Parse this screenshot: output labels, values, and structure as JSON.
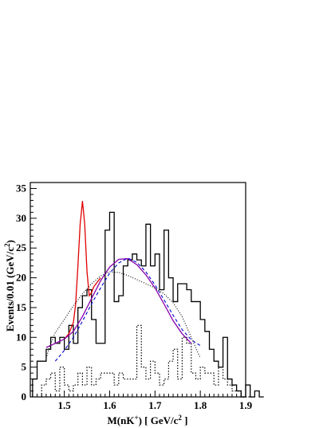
{
  "chart_data": {
    "type": "histogram",
    "xlabel": "M(nK⁺) [ GeV/c² ]",
    "ylabel": "Events/0.01 (GeV/c²)",
    "xlim": [
      1.425,
      1.9
    ],
    "ylim": [
      0,
      36
    ],
    "bin_width": 0.01,
    "x_ticks": [
      1.5,
      1.6,
      1.7,
      1.8,
      1.9
    ],
    "y_ticks": [
      0,
      5,
      10,
      15,
      20,
      25,
      30,
      35
    ],
    "grid": false,
    "legend": "none",
    "series": [
      {
        "style": "solid-histogram",
        "bin_edges_start": 1.43,
        "counts": [
          3,
          6,
          6,
          8,
          10,
          9,
          10,
          8,
          12,
          9,
          15,
          17,
          18,
          13,
          9,
          9,
          28,
          31,
          16,
          17,
          22,
          23,
          24,
          23,
          22,
          29,
          22,
          24,
          18,
          28,
          20,
          16,
          19,
          19,
          18,
          16,
          16,
          13,
          11,
          8,
          6,
          5,
          10,
          3,
          2,
          1,
          0,
          2,
          0,
          1,
          0
        ]
      },
      {
        "style": "dotted-histogram",
        "bin_edges_start": 1.45,
        "counts": [
          2,
          3,
          4,
          1,
          5,
          2,
          1,
          2,
          4,
          2,
          5,
          2,
          3,
          4,
          4,
          4,
          2,
          4,
          3,
          3,
          3,
          12,
          5,
          3,
          6,
          4,
          2,
          3,
          6,
          8,
          3,
          10,
          9,
          4,
          3,
          5,
          4,
          4,
          2,
          5,
          3,
          2,
          1,
          1,
          0,
          0,
          0
        ]
      }
    ],
    "curves": [
      {
        "name": "fit-peak",
        "color": "#e00000",
        "style": "solid",
        "x": [
          1.5,
          1.51,
          1.52,
          1.525,
          1.53,
          1.535,
          1.54,
          1.545,
          1.55,
          1.555,
          1.56,
          1.565,
          1.57,
          1.58
        ],
        "y": [
          9.7,
          10.6,
          12.5,
          15.5,
          22,
          29,
          32.9,
          29,
          21,
          17,
          17.5,
          18.5,
          19,
          20
        ]
      },
      {
        "name": "fit-background",
        "color": "#8800aa",
        "style": "solid",
        "x": [
          1.46,
          1.48,
          1.5,
          1.52,
          1.54,
          1.56,
          1.58,
          1.6,
          1.62,
          1.64,
          1.66,
          1.68,
          1.7,
          1.72,
          1.74,
          1.76,
          1.78
        ],
        "y": [
          8.3,
          9,
          9.7,
          11,
          13.5,
          16.5,
          19.5,
          21.8,
          23.1,
          23.2,
          22.2,
          20.5,
          18.3,
          15.6,
          12.8,
          10.6,
          9
        ]
      },
      {
        "name": "phase-space",
        "color": "#0000cc",
        "style": "dashed",
        "x": [
          1.48,
          1.5,
          1.52,
          1.54,
          1.56,
          1.58,
          1.6,
          1.62,
          1.64,
          1.66,
          1.68,
          1.7,
          1.72,
          1.74,
          1.76,
          1.78,
          1.8
        ],
        "y": [
          6,
          7.8,
          10,
          12.7,
          15.6,
          18.3,
          20.8,
          22.5,
          23.3,
          22.6,
          21,
          18.8,
          16.3,
          13.7,
          11.3,
          9.6,
          8.6
        ]
      },
      {
        "name": "background-shape",
        "color": "#000000",
        "style": "dotted",
        "x": [
          1.46,
          1.47,
          1.48,
          1.5,
          1.52,
          1.54,
          1.56,
          1.58,
          1.6,
          1.62,
          1.64,
          1.66,
          1.68,
          1.7,
          1.72,
          1.74,
          1.76,
          1.78,
          1.8
        ],
        "y": [
          6.5,
          9,
          10.8,
          13,
          15.3,
          17.3,
          19,
          20.3,
          21,
          20.9,
          20.4,
          19.7,
          19,
          18.3,
          17.3,
          15.8,
          13.5,
          10,
          6.5
        ]
      }
    ]
  }
}
